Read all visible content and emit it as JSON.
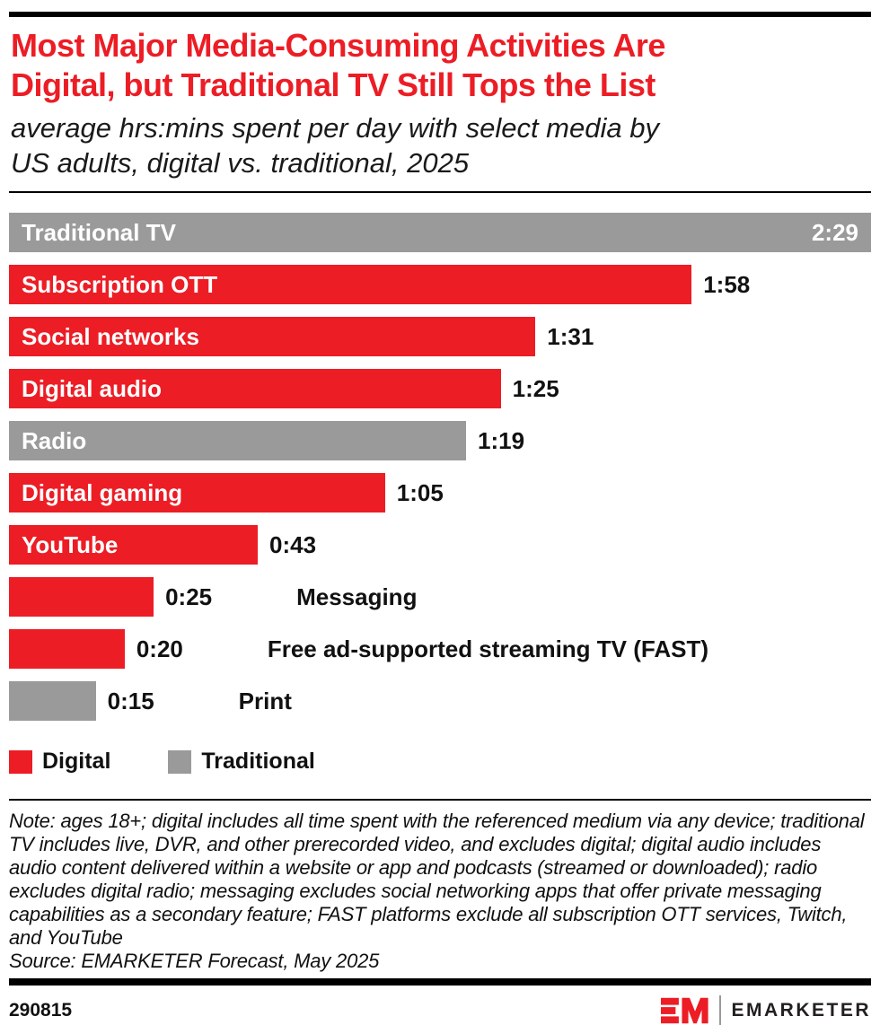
{
  "header": {
    "title_line1": "Most Major Media-Consuming Activities Are",
    "title_line2": "Digital, but Traditional TV Still Tops the List",
    "subtitle_line1": "average hrs:mins spent per day with select media by",
    "subtitle_line2": "US adults, digital vs. traditional, 2025"
  },
  "colors": {
    "digital": "#EC1D25",
    "traditional": "#9A9A9A",
    "accent": "#EC1D25"
  },
  "chart_data": {
    "type": "bar",
    "orientation": "horizontal",
    "title": "Most Major Media-Consuming Activities Are Digital, but Traditional TV Still Tops the List",
    "subtitle": "average hrs:mins spent per day with select media by US adults, digital vs. traditional, 2025",
    "unit": "hrs:mins per day",
    "xlim_minutes": [
      0,
      149
    ],
    "grid": false,
    "legend_position": "bottom",
    "categories": [
      "Traditional TV",
      "Subscription OTT",
      "Social networks",
      "Digital audio",
      "Radio",
      "Digital gaming",
      "YouTube",
      "Messaging",
      "Free ad-supported streaming TV (FAST)",
      "Print"
    ],
    "values_hhmm": [
      "2:29",
      "1:58",
      "1:31",
      "1:25",
      "1:19",
      "1:05",
      "0:43",
      "0:25",
      "0:20",
      "0:15"
    ],
    "values_minutes": [
      149,
      118,
      91,
      85,
      79,
      65,
      43,
      25,
      20,
      15
    ],
    "bars": [
      {
        "label": "Traditional TV",
        "value": "2:29",
        "minutes": 149,
        "type": "traditional",
        "label_inside": true,
        "value_inside": true
      },
      {
        "label": "Subscription OTT",
        "value": "1:58",
        "minutes": 118,
        "type": "digital",
        "label_inside": true,
        "value_inside": false
      },
      {
        "label": "Social networks",
        "value": "1:31",
        "minutes": 91,
        "type": "digital",
        "label_inside": true,
        "value_inside": false
      },
      {
        "label": "Digital audio",
        "value": "1:25",
        "minutes": 85,
        "type": "digital",
        "label_inside": true,
        "value_inside": false
      },
      {
        "label": "Radio",
        "value": "1:19",
        "minutes": 79,
        "type": "traditional",
        "label_inside": true,
        "value_inside": false
      },
      {
        "label": "Digital gaming",
        "value": "1:05",
        "minutes": 65,
        "type": "digital",
        "label_inside": true,
        "value_inside": false
      },
      {
        "label": "YouTube",
        "value": "0:43",
        "minutes": 43,
        "type": "digital",
        "label_inside": true,
        "value_inside": false
      },
      {
        "label": "Messaging",
        "value": "0:25",
        "minutes": 25,
        "type": "digital",
        "label_inside": false,
        "value_inside": false
      },
      {
        "label": "Free ad-supported streaming TV (FAST)",
        "value": "0:20",
        "minutes": 20,
        "type": "digital",
        "label_inside": false,
        "value_inside": false
      },
      {
        "label": "Print",
        "value": "0:15",
        "minutes": 15,
        "type": "traditional",
        "label_inside": false,
        "value_inside": false
      }
    ],
    "legend": [
      {
        "label": "Digital",
        "color": "#EC1D25"
      },
      {
        "label": "Traditional",
        "color": "#9A9A9A"
      }
    ]
  },
  "note": "Note: ages 18+; digital includes all time spent with the referenced medium via any device; traditional TV includes live, DVR, and other prerecorded video, and excludes digital; digital audio includes audio content delivered within a website or app and podcasts (streamed or downloaded); radio excludes digital radio; messaging excludes social networking apps that offer private messaging capabilities as a secondary feature; FAST platforms exclude all subscription OTT services, Twitch, and YouTube",
  "source": "Source: EMARKETER Forecast, May 2025",
  "footer": {
    "id": "290815",
    "brand": "EMARKETER"
  }
}
